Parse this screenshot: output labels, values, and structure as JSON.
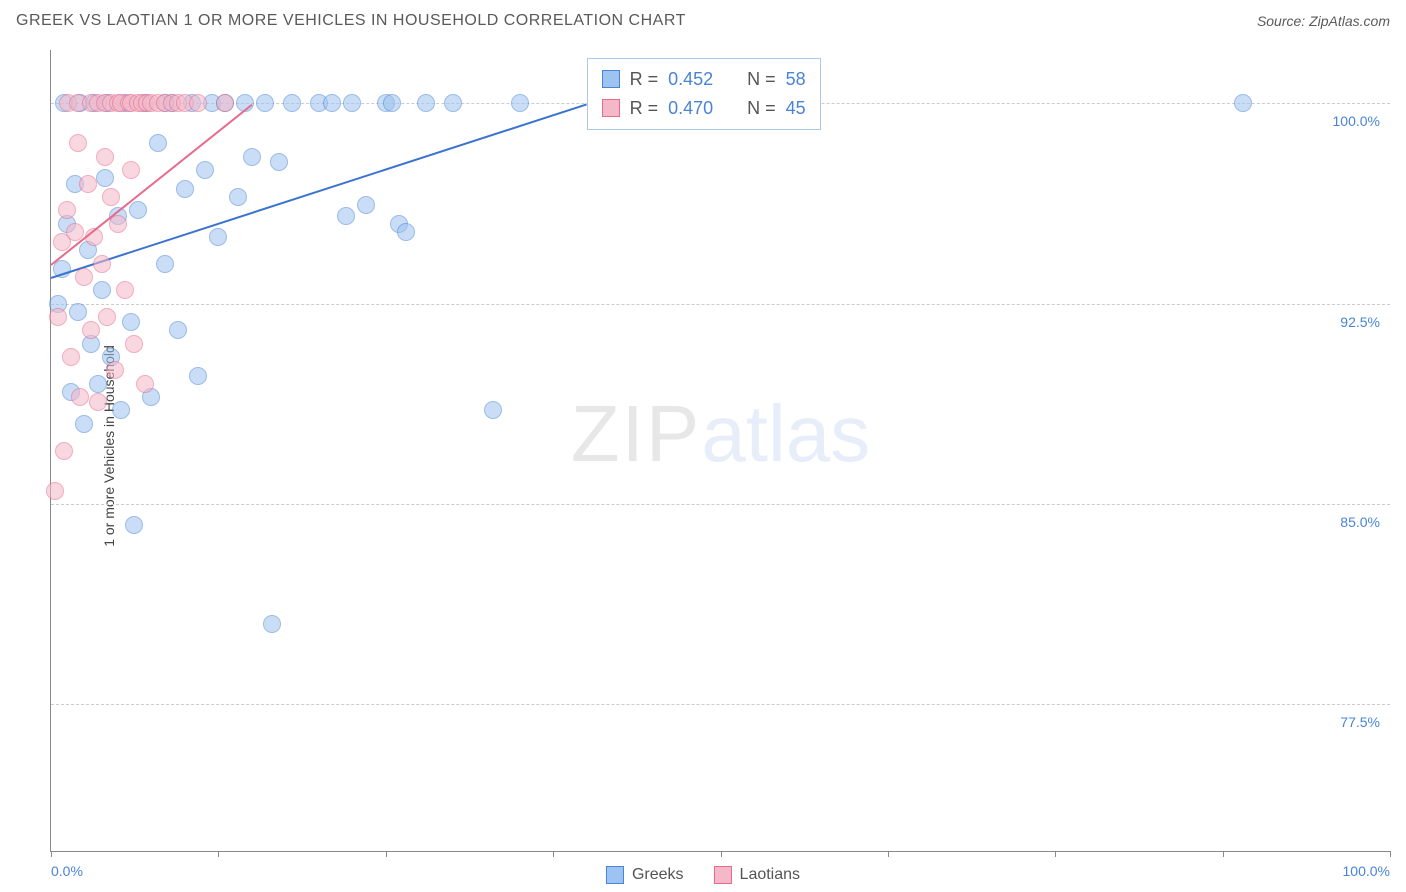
{
  "title": "GREEK VS LAOTIAN 1 OR MORE VEHICLES IN HOUSEHOLD CORRELATION CHART",
  "source": "Source: ZipAtlas.com",
  "y_axis_label": "1 or more Vehicles in Household",
  "watermark": {
    "part1": "ZIP",
    "part2": "atlas"
  },
  "chart": {
    "type": "scatter",
    "xlim": [
      0,
      100
    ],
    "ylim": [
      72,
      102
    ],
    "x_ticks": [
      0,
      12.5,
      25,
      37.5,
      50,
      62.5,
      75,
      87.5,
      100
    ],
    "x_tick_labels": {
      "0": "0.0%",
      "100": "100.0%"
    },
    "y_gridlines": [
      77.5,
      85.0,
      92.5,
      100.0
    ],
    "y_tick_labels": [
      "77.5%",
      "85.0%",
      "92.5%",
      "100.0%"
    ],
    "background_color": "#ffffff",
    "grid_color": "#cccccc",
    "axis_color": "#888888",
    "tick_label_color": "#4a84d6",
    "marker_radius": 9,
    "marker_opacity": 0.55,
    "series": [
      {
        "name": "Greeks",
        "color_fill": "#9dc3f0",
        "color_stroke": "#4a84d6",
        "trend": {
          "x1": 0,
          "y1": 93.5,
          "x2": 40,
          "y2": 100.0,
          "color": "#3a74d0",
          "width": 2
        },
        "stats": {
          "R": "0.452",
          "N": "58"
        },
        "points": [
          [
            0.5,
            92.5
          ],
          [
            0.8,
            93.8
          ],
          [
            1.0,
            100.0
          ],
          [
            1.2,
            95.5
          ],
          [
            1.5,
            89.2
          ],
          [
            1.8,
            97.0
          ],
          [
            2.0,
            92.2
          ],
          [
            2.2,
            100.0
          ],
          [
            2.5,
            88.0
          ],
          [
            2.8,
            94.5
          ],
          [
            3.0,
            91.0
          ],
          [
            3.2,
            100.0
          ],
          [
            3.5,
            89.5
          ],
          [
            3.8,
            93.0
          ],
          [
            4.0,
            97.2
          ],
          [
            4.2,
            100.0
          ],
          [
            4.5,
            90.5
          ],
          [
            5.0,
            95.8
          ],
          [
            5.2,
            88.5
          ],
          [
            5.5,
            100.0
          ],
          [
            6.0,
            91.8
          ],
          [
            6.2,
            84.2
          ],
          [
            6.5,
            96.0
          ],
          [
            7.0,
            100.0
          ],
          [
            7.5,
            89.0
          ],
          [
            8.0,
            98.5
          ],
          [
            8.5,
            94.0
          ],
          [
            9.0,
            100.0
          ],
          [
            9.5,
            91.5
          ],
          [
            10.0,
            96.8
          ],
          [
            10.5,
            100.0
          ],
          [
            11.0,
            89.8
          ],
          [
            11.5,
            97.5
          ],
          [
            12.0,
            100.0
          ],
          [
            12.5,
            95.0
          ],
          [
            13.0,
            100.0
          ],
          [
            14.0,
            96.5
          ],
          [
            14.5,
            100.0
          ],
          [
            15.0,
            98.0
          ],
          [
            16.0,
            100.0
          ],
          [
            16.5,
            80.5
          ],
          [
            17.0,
            97.8
          ],
          [
            18.0,
            100.0
          ],
          [
            20.0,
            100.0
          ],
          [
            21.0,
            100.0
          ],
          [
            22.0,
            95.8
          ],
          [
            22.5,
            100.0
          ],
          [
            23.5,
            96.2
          ],
          [
            25.0,
            100.0
          ],
          [
            25.5,
            100.0
          ],
          [
            26.0,
            95.5
          ],
          [
            26.5,
            95.2
          ],
          [
            28.0,
            100.0
          ],
          [
            30.0,
            100.0
          ],
          [
            33.0,
            88.5
          ],
          [
            35.0,
            100.0
          ],
          [
            89.0,
            100.0
          ],
          [
            8.5,
            100.0
          ]
        ]
      },
      {
        "name": "Laotians",
        "color_fill": "#f5b8c8",
        "color_stroke": "#e86a8a",
        "trend": {
          "x1": 0,
          "y1": 94.0,
          "x2": 15,
          "y2": 100.0,
          "color": "#e86a8a",
          "width": 2
        },
        "stats": {
          "R": "0.470",
          "N": "45"
        },
        "points": [
          [
            0.3,
            85.5
          ],
          [
            0.5,
            92.0
          ],
          [
            0.8,
            94.8
          ],
          [
            1.0,
            87.0
          ],
          [
            1.2,
            96.0
          ],
          [
            1.3,
            100.0
          ],
          [
            1.5,
            90.5
          ],
          [
            1.8,
            95.2
          ],
          [
            2.0,
            98.5
          ],
          [
            2.0,
            100.0
          ],
          [
            2.2,
            89.0
          ],
          [
            2.5,
            93.5
          ],
          [
            2.8,
            97.0
          ],
          [
            3.0,
            100.0
          ],
          [
            3.0,
            91.5
          ],
          [
            3.2,
            95.0
          ],
          [
            3.5,
            100.0
          ],
          [
            3.5,
            88.8
          ],
          [
            3.8,
            94.0
          ],
          [
            4.0,
            98.0
          ],
          [
            4.0,
            100.0
          ],
          [
            4.2,
            92.0
          ],
          [
            4.5,
            100.0
          ],
          [
            4.5,
            96.5
          ],
          [
            4.8,
            90.0
          ],
          [
            5.0,
            100.0
          ],
          [
            5.0,
            95.5
          ],
          [
            5.2,
            100.0
          ],
          [
            5.5,
            93.0
          ],
          [
            5.8,
            100.0
          ],
          [
            6.0,
            97.5
          ],
          [
            6.0,
            100.0
          ],
          [
            6.2,
            91.0
          ],
          [
            6.5,
            100.0
          ],
          [
            6.8,
            100.0
          ],
          [
            7.0,
            89.5
          ],
          [
            7.2,
            100.0
          ],
          [
            7.5,
            100.0
          ],
          [
            8.0,
            100.0
          ],
          [
            8.5,
            100.0
          ],
          [
            9.0,
            100.0
          ],
          [
            9.5,
            100.0
          ],
          [
            10.0,
            100.0
          ],
          [
            11.0,
            100.0
          ],
          [
            13.0,
            100.0
          ]
        ]
      }
    ]
  },
  "legend_box": {
    "R_label": "R =",
    "N_label": "N ="
  },
  "bottom_legend": [
    "Greeks",
    "Laotians"
  ]
}
